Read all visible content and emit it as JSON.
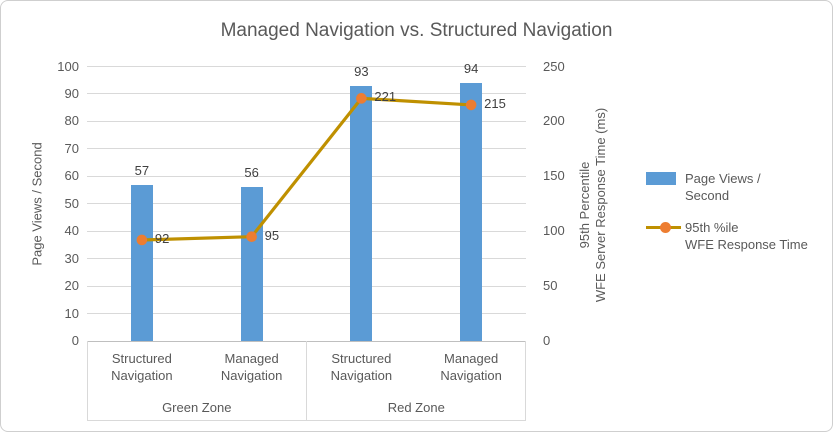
{
  "chart_data": {
    "type": "bar+line combo",
    "title": "Managed Navigation vs. Structured Navigation",
    "categories": [
      "Structured Navigation",
      "Managed Navigation",
      "Structured Navigation",
      "Managed Navigation"
    ],
    "groups": [
      {
        "label": "Green Zone",
        "span": 2
      },
      {
        "label": "Red Zone",
        "span": 2
      }
    ],
    "series": [
      {
        "name": "Page Views / Second",
        "type": "bar",
        "axis": "left",
        "color": "#5b9bd5",
        "values": [
          57,
          56,
          93,
          94
        ]
      },
      {
        "name": "95th %ile WFE Response Time",
        "type": "line",
        "axis": "right",
        "color": "#bf9000",
        "marker_color": "#ed7d31",
        "values": [
          92,
          95,
          221,
          215
        ]
      }
    ],
    "left_axis": {
      "title": "Page Views / Second",
      "range": [
        0,
        100
      ],
      "step": 10
    },
    "right_axis": {
      "title_lines": [
        "95th Percentile",
        "WFE Server Response Time (ms)"
      ],
      "range": [
        0,
        250
      ],
      "step": 50
    },
    "legend": {
      "position": "right",
      "entries": [
        {
          "lines": [
            "Page Views /",
            "Second"
          ]
        },
        {
          "lines": [
            "95th %ile",
            "WFE Response Time"
          ]
        }
      ]
    },
    "grid": true,
    "data_labels": true,
    "colors": {
      "grid": "#d9d9d9",
      "axis_line": "#bfbfbf",
      "tick_text": "#595959",
      "data_label_text": "#404040"
    }
  }
}
